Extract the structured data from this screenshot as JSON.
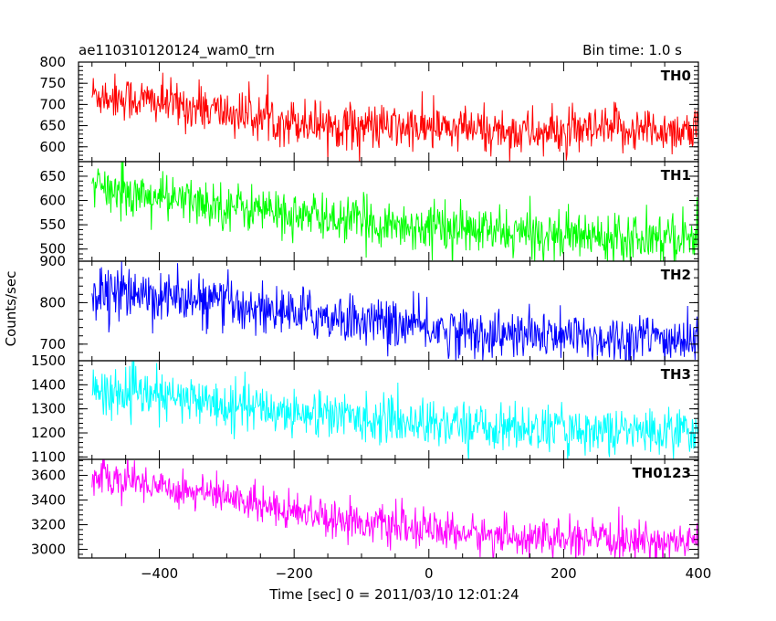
{
  "header": {
    "left_title": "ae110310120124_wam0_trn",
    "right_title": "Bin time: 1.0 s"
  },
  "chart_data": {
    "type": "line",
    "ylabel": "Counts/sec",
    "xlabel": "Time [sec] 0 = 2011/03/10 12:01:24",
    "xlim": [
      -520,
      400
    ],
    "xticks": [
      -400,
      -200,
      0,
      200,
      400
    ],
    "x_start": -500,
    "x_end": 400,
    "x_step": 1,
    "panels": [
      {
        "name": "TH0",
        "color": "#ff0000",
        "ylim": [
          565,
          800
        ],
        "yticks": [
          600,
          650,
          700,
          750,
          800
        ],
        "trend": [
          [
            -500,
            725
          ],
          [
            -400,
            705
          ],
          [
            -300,
            680
          ],
          [
            -200,
            660
          ],
          [
            -100,
            648
          ],
          [
            0,
            642
          ],
          [
            100,
            638
          ],
          [
            200,
            630
          ],
          [
            300,
            642
          ],
          [
            400,
            638
          ]
        ],
        "noise": 27
      },
      {
        "name": "TH1",
        "color": "#00ff00",
        "ylim": [
          475,
          680
        ],
        "yticks": [
          500,
          550,
          600,
          650
        ],
        "trend": [
          [
            -500,
            625
          ],
          [
            -400,
            605
          ],
          [
            -300,
            590
          ],
          [
            -200,
            570
          ],
          [
            -100,
            555
          ],
          [
            0,
            545
          ],
          [
            100,
            535
          ],
          [
            200,
            528
          ],
          [
            300,
            528
          ],
          [
            400,
            525
          ]
        ],
        "noise": 24
      },
      {
        "name": "TH2",
        "color": "#0000ff",
        "ylim": [
          660,
          900
        ],
        "yticks": [
          700,
          800,
          900
        ],
        "trend": [
          [
            -500,
            825
          ],
          [
            -400,
            815
          ],
          [
            -300,
            795
          ],
          [
            -200,
            775
          ],
          [
            -100,
            758
          ],
          [
            0,
            738
          ],
          [
            100,
            722
          ],
          [
            200,
            718
          ],
          [
            300,
            712
          ],
          [
            400,
            710
          ]
        ],
        "noise": 30
      },
      {
        "name": "TH3",
        "color": "#00ffff",
        "ylim": [
          1090,
          1500
        ],
        "yticks": [
          1100,
          1200,
          1300,
          1400,
          1500
        ],
        "trend": [
          [
            -500,
            1375
          ],
          [
            -400,
            1350
          ],
          [
            -300,
            1320
          ],
          [
            -200,
            1285
          ],
          [
            -100,
            1262
          ],
          [
            0,
            1240
          ],
          [
            100,
            1225
          ],
          [
            200,
            1212
          ],
          [
            300,
            1206
          ],
          [
            400,
            1205
          ]
        ],
        "noise": 48
      },
      {
        "name": "TH0123",
        "color": "#ff00ff",
        "ylim": [
          2930,
          3730
        ],
        "yticks": [
          3000,
          3200,
          3400,
          3600
        ],
        "trend": [
          [
            -500,
            3600
          ],
          [
            -400,
            3520
          ],
          [
            -300,
            3420
          ],
          [
            -200,
            3320
          ],
          [
            -100,
            3220
          ],
          [
            0,
            3150
          ],
          [
            100,
            3110
          ],
          [
            200,
            3080
          ],
          [
            300,
            3065
          ],
          [
            400,
            3060
          ]
        ],
        "noise": 75
      }
    ]
  }
}
